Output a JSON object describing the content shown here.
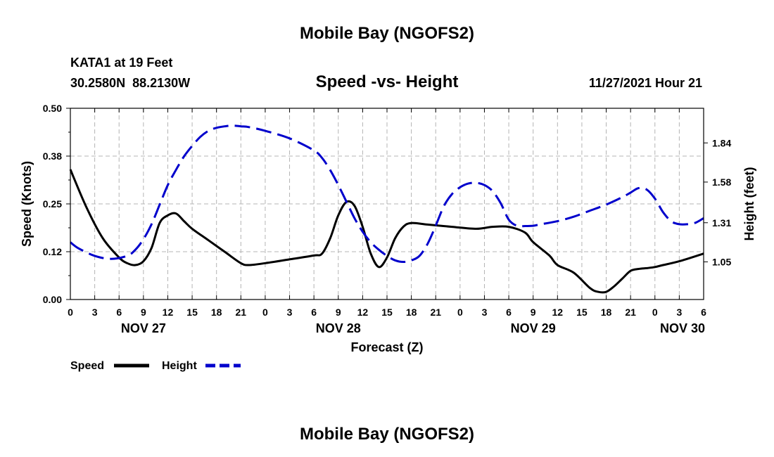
{
  "chart_data": {
    "type": "line",
    "title": "Mobile Bay (NGOFS2)",
    "subtitle": "Speed -vs- Height",
    "station": "KATA1 at 19 Feet",
    "coordinates": "30.2580N  88.2130W",
    "timestamp": "11/27/2021 Hour 21",
    "footer_title": "Mobile Bay (NGOFS2)",
    "xlabel": "Forecast (Z)",
    "ylabel_left": "Speed (Knots)",
    "ylabel_right": "Height (feet)",
    "x_range_hours": [
      0,
      78
    ],
    "y_left_range": [
      0,
      0.5
    ],
    "y_right_range": [
      0.8,
      2.07
    ],
    "x_tick_labels": [
      "0",
      "3",
      "6",
      "9",
      "12",
      "15",
      "18",
      "21",
      "0",
      "3",
      "6",
      "9",
      "12",
      "15",
      "18",
      "21",
      "0",
      "3",
      "6",
      "9",
      "12",
      "15",
      "18",
      "21",
      "0",
      "3",
      "6"
    ],
    "y_left_ticks": [
      {
        "value": 0.0,
        "label": "0.00"
      },
      {
        "value": 0.125,
        "label": "0.12"
      },
      {
        "value": 0.25,
        "label": "0.25"
      },
      {
        "value": 0.375,
        "label": "0.38"
      },
      {
        "value": 0.5,
        "label": "0.50"
      }
    ],
    "y_right_ticks": [
      {
        "value": 1.05,
        "label": "1.05"
      },
      {
        "value": 1.31,
        "label": "1.31"
      },
      {
        "value": 1.58,
        "label": "1.58"
      },
      {
        "value": 1.84,
        "label": "1.84"
      }
    ],
    "date_labels": [
      {
        "hour": 9,
        "label": "NOV 27"
      },
      {
        "hour": 33,
        "label": "NOV 28"
      },
      {
        "hour": 57,
        "label": "NOV 29"
      },
      {
        "hour": 78,
        "label": "NOV 30"
      }
    ],
    "series": [
      {
        "name": "Speed",
        "axis": "left",
        "color": "#000000",
        "style": "solid",
        "x": [
          0,
          2,
          4,
          6,
          7,
          8,
          9,
          10,
          11,
          12,
          13,
          14,
          15,
          17,
          19,
          21,
          22,
          24,
          27,
          30,
          31,
          32,
          33,
          34,
          35,
          36,
          37,
          38,
          39,
          40,
          41,
          42,
          44,
          47,
          50,
          52,
          54,
          56,
          57,
          59,
          60,
          62,
          64,
          65,
          66,
          67,
          68,
          69,
          70,
          71,
          72,
          73,
          75,
          78
        ],
        "values": [
          0.34,
          0.24,
          0.16,
          0.11,
          0.095,
          0.09,
          0.1,
          0.135,
          0.2,
          0.22,
          0.225,
          0.205,
          0.185,
          0.155,
          0.125,
          0.095,
          0.09,
          0.095,
          0.105,
          0.115,
          0.12,
          0.16,
          0.22,
          0.255,
          0.245,
          0.19,
          0.12,
          0.085,
          0.11,
          0.16,
          0.19,
          0.2,
          0.196,
          0.19,
          0.185,
          0.19,
          0.19,
          0.175,
          0.15,
          0.115,
          0.09,
          0.07,
          0.03,
          0.02,
          0.02,
          0.035,
          0.055,
          0.075,
          0.08,
          0.082,
          0.085,
          0.09,
          0.1,
          0.12
        ]
      },
      {
        "name": "Height",
        "axis": "right",
        "color": "#0000cc",
        "style": "dashed",
        "x": [
          0,
          1,
          3,
          5,
          7,
          8,
          9,
          10,
          11,
          12,
          13,
          14,
          15,
          16,
          17,
          18,
          19,
          20,
          21,
          22,
          24,
          27,
          30,
          31,
          32,
          33,
          34,
          35,
          36,
          37,
          38,
          39,
          40,
          41,
          42,
          43,
          44,
          45,
          46,
          47,
          48,
          49,
          50,
          51,
          52,
          53,
          54,
          55,
          56,
          57,
          58,
          60,
          62,
          64,
          66,
          68,
          69,
          70,
          71,
          72,
          73,
          74,
          75,
          76,
          77,
          78
        ],
        "values": [
          1.18,
          1.14,
          1.09,
          1.07,
          1.09,
          1.13,
          1.2,
          1.3,
          1.43,
          1.56,
          1.66,
          1.75,
          1.82,
          1.88,
          1.92,
          1.94,
          1.95,
          1.955,
          1.95,
          1.945,
          1.92,
          1.87,
          1.79,
          1.74,
          1.66,
          1.56,
          1.45,
          1.34,
          1.25,
          1.18,
          1.13,
          1.09,
          1.06,
          1.05,
          1.06,
          1.09,
          1.17,
          1.29,
          1.42,
          1.5,
          1.545,
          1.57,
          1.575,
          1.56,
          1.52,
          1.44,
          1.33,
          1.29,
          1.288,
          1.29,
          1.3,
          1.32,
          1.35,
          1.39,
          1.43,
          1.48,
          1.51,
          1.54,
          1.53,
          1.47,
          1.38,
          1.32,
          1.3,
          1.3,
          1.31,
          1.34
        ]
      }
    ],
    "legend": [
      {
        "label": "Speed",
        "color": "#000000",
        "style": "solid"
      },
      {
        "label": "Height",
        "color": "#0000cc",
        "style": "dashed"
      }
    ]
  }
}
